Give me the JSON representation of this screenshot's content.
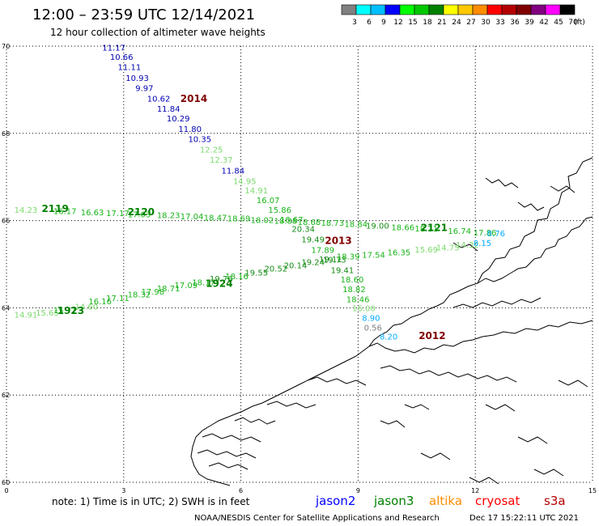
{
  "header": {
    "title": "12:00  –  23:59 UTC  12/14/2021",
    "subtitle": "12 hour collection of altimeter wave heights"
  },
  "legend": {
    "colors": [
      "#808080",
      "#00ffff",
      "#00bfff",
      "#0000ff",
      "#00ff00",
      "#00c800",
      "#008000",
      "#ffff00",
      "#ffc800",
      "#ff8c00",
      "#ff0000",
      "#b40000",
      "#800000",
      "#800080",
      "#ff00ff",
      "#000000"
    ],
    "labels": [
      "3",
      "6",
      "9",
      "12",
      "15",
      "18",
      "21",
      "24",
      "27",
      "30",
      "33",
      "36",
      "39",
      "42",
      "45",
      "70",
      "(ft)"
    ]
  },
  "axes": {
    "lon_ticks": [
      "0",
      "3",
      "6",
      "9",
      "12",
      "15"
    ],
    "lat_ticks": [
      "70",
      "68",
      "66",
      "64",
      "62",
      "60"
    ]
  },
  "chart_data": {
    "type": "scatter",
    "x_range": [
      0,
      15
    ],
    "y_range": [
      60,
      70
    ],
    "units": "ft",
    "tracks": [
      {
        "satellite": "jason2",
        "pass": "2014",
        "points": [
          {
            "lon": 2.45,
            "lat": 69.9,
            "v": "11.17",
            "c": "#0000b4"
          },
          {
            "lon": 2.65,
            "lat": 69.68,
            "v": "10.66",
            "c": "#0000b4"
          },
          {
            "lon": 2.85,
            "lat": 69.45,
            "v": "11.11",
            "c": "#0000b4"
          },
          {
            "lon": 3.05,
            "lat": 69.2,
            "v": "10.93",
            "c": "#0000b4"
          },
          {
            "lon": 3.3,
            "lat": 68.97,
            "v": "9.97",
            "c": "#0000b4"
          },
          {
            "lon": 3.6,
            "lat": 68.73,
            "v": "10.62",
            "c": "#0000b4"
          },
          {
            "lon": 3.85,
            "lat": 68.5,
            "v": "11.84",
            "c": "#0000b4"
          },
          {
            "lon": 4.1,
            "lat": 68.27,
            "v": "10.29",
            "c": "#0000b4"
          },
          {
            "lon": 4.4,
            "lat": 68.03,
            "v": "11.80",
            "c": "#0000b4"
          },
          {
            "lon": 4.65,
            "lat": 67.8,
            "v": "10.35",
            "c": "#0000b4"
          },
          {
            "lon": 4.95,
            "lat": 67.56,
            "v": "12.25",
            "c": "#7cd96e"
          },
          {
            "lon": 5.2,
            "lat": 67.33,
            "v": "12.37",
            "c": "#7cd96e"
          },
          {
            "lon": 5.5,
            "lat": 67.08,
            "v": "11.84",
            "c": "#0000b4"
          },
          {
            "lon": 5.8,
            "lat": 66.84,
            "v": "14.95",
            "c": "#7cd96e"
          },
          {
            "lon": 6.1,
            "lat": 66.62,
            "v": "14.91",
            "c": "#7cd96e"
          },
          {
            "lon": 6.4,
            "lat": 66.4,
            "v": "16.07",
            "c": "#18b418"
          },
          {
            "lon": 6.7,
            "lat": 66.18,
            "v": "15.86",
            "c": "#18b418"
          },
          {
            "lon": 7.0,
            "lat": 65.96,
            "v": "16.67",
            "c": "#18b418"
          },
          {
            "lon": 7.3,
            "lat": 65.74,
            "v": "20.34",
            "c": "#148c14"
          },
          {
            "lon": 7.55,
            "lat": 65.5,
            "v": "19.49",
            "c": "#148c14"
          },
          {
            "lon": 7.8,
            "lat": 65.26,
            "v": "17.89",
            "c": "#18b418"
          },
          {
            "lon": 8.1,
            "lat": 65.04,
            "v": "19.73",
            "c": "#148c14"
          },
          {
            "lon": 8.3,
            "lat": 64.8,
            "v": "19.41",
            "c": "#148c14"
          },
          {
            "lon": 8.55,
            "lat": 64.58,
            "v": "18.60",
            "c": "#18b418"
          },
          {
            "lon": 8.6,
            "lat": 64.36,
            "v": "18.82",
            "c": "#18b418"
          },
          {
            "lon": 8.7,
            "lat": 64.13,
            "v": "18.46",
            "c": "#18b418"
          },
          {
            "lon": 8.85,
            "lat": 63.92,
            "v": "16.00",
            "c": "#7cd96e"
          },
          {
            "lon": 9.1,
            "lat": 63.7,
            "v": "8.90",
            "c": "#00aaff"
          },
          {
            "lon": 9.15,
            "lat": 63.48,
            "v": "0.56",
            "c": "#808080"
          },
          {
            "lon": 9.55,
            "lat": 63.27,
            "v": "8.20",
            "c": "#00aaff"
          }
        ]
      },
      {
        "satellite": "jason3",
        "pass": "2120",
        "points": [
          {
            "lon": 0.2,
            "lat": 66.18,
            "v": "14.23",
            "c": "#7cd96e"
          },
          {
            "lon": 1.2,
            "lat": 66.15,
            "v": "16.17",
            "c": "#18b418"
          },
          {
            "lon": 1.9,
            "lat": 66.12,
            "v": "16.63",
            "c": "#18b418"
          },
          {
            "lon": 2.55,
            "lat": 66.1,
            "v": "17.17",
            "c": "#18b418"
          },
          {
            "lon": 3.1,
            "lat": 66.08,
            "v": "17.03",
            "c": "#18b418"
          },
          {
            "lon": 3.85,
            "lat": 66.06,
            "v": "18.23",
            "c": "#18b418"
          },
          {
            "lon": 4.45,
            "lat": 66.03,
            "v": "17.04",
            "c": "#18b418"
          },
          {
            "lon": 5.05,
            "lat": 66.0,
            "v": "18.47",
            "c": "#18b418"
          },
          {
            "lon": 5.65,
            "lat": 65.98,
            "v": "18.69",
            "c": "#18b418"
          },
          {
            "lon": 6.25,
            "lat": 65.95,
            "v": "18.02",
            "c": "#18b418"
          },
          {
            "lon": 6.85,
            "lat": 65.93,
            "v": "18.38",
            "c": "#18b418"
          },
          {
            "lon": 7.45,
            "lat": 65.9,
            "v": "18.68",
            "c": "#18b418"
          },
          {
            "lon": 8.05,
            "lat": 65.88,
            "v": "18.73",
            "c": "#18b418"
          },
          {
            "lon": 8.65,
            "lat": 65.85,
            "v": "18.84",
            "c": "#18b418"
          },
          {
            "lon": 9.2,
            "lat": 65.82,
            "v": "19.00",
            "c": "#148c14"
          },
          {
            "lon": 9.85,
            "lat": 65.78,
            "v": "18.66",
            "c": "#18b418"
          },
          {
            "lon": 10.45,
            "lat": 65.75,
            "v": "18.21",
            "c": "#18b418"
          },
          {
            "lon": 11.3,
            "lat": 65.7,
            "v": "16.74",
            "c": "#18b418"
          },
          {
            "lon": 11.95,
            "lat": 65.66,
            "v": "17.86",
            "c": "#18b418"
          },
          {
            "lon": 12.3,
            "lat": 65.64,
            "v": "8.76",
            "c": "#00aaff"
          }
        ]
      },
      {
        "satellite": "jason3",
        "pass": "1924",
        "points": [
          {
            "lon": 0.2,
            "lat": 63.78,
            "v": "14.91",
            "c": "#7cd96e"
          },
          {
            "lon": 0.75,
            "lat": 63.82,
            "v": "15.65",
            "c": "#7cd96e"
          },
          {
            "lon": 1.2,
            "lat": 63.88,
            "v": "15.71",
            "c": "#18b418"
          },
          {
            "lon": 1.75,
            "lat": 63.96,
            "v": "14.60",
            "c": "#7cd96e"
          },
          {
            "lon": 2.1,
            "lat": 64.08,
            "v": "16.16",
            "c": "#18b418"
          },
          {
            "lon": 2.55,
            "lat": 64.16,
            "v": "17.11",
            "c": "#18b418"
          },
          {
            "lon": 3.1,
            "lat": 64.24,
            "v": "18.32",
            "c": "#18b418"
          },
          {
            "lon": 3.45,
            "lat": 64.3,
            "v": "17.98",
            "c": "#18b418"
          },
          {
            "lon": 3.85,
            "lat": 64.38,
            "v": "18.71",
            "c": "#18b418"
          },
          {
            "lon": 4.3,
            "lat": 64.45,
            "v": "17.09",
            "c": "#18b418"
          },
          {
            "lon": 4.75,
            "lat": 64.52,
            "v": "18.17",
            "c": "#18b418"
          },
          {
            "lon": 5.2,
            "lat": 64.6,
            "v": "19.76",
            "c": "#148c14"
          },
          {
            "lon": 5.6,
            "lat": 64.66,
            "v": "18.16",
            "c": "#18b418"
          },
          {
            "lon": 6.1,
            "lat": 64.74,
            "v": "19.55",
            "c": "#148c14"
          },
          {
            "lon": 6.6,
            "lat": 64.83,
            "v": "20.52",
            "c": "#148c14"
          },
          {
            "lon": 7.1,
            "lat": 64.91,
            "v": "20.14",
            "c": "#148c14"
          },
          {
            "lon": 7.55,
            "lat": 64.98,
            "v": "19.24",
            "c": "#148c14"
          },
          {
            "lon": 8.0,
            "lat": 65.05,
            "v": "19.11",
            "c": "#148c14"
          },
          {
            "lon": 8.45,
            "lat": 65.11,
            "v": "18.39",
            "c": "#18b418"
          },
          {
            "lon": 9.1,
            "lat": 65.15,
            "v": "17.54",
            "c": "#18b418"
          },
          {
            "lon": 9.75,
            "lat": 65.2,
            "v": "16.35",
            "c": "#18b418"
          },
          {
            "lon": 10.45,
            "lat": 65.27,
            "v": "15.69",
            "c": "#7cd96e"
          },
          {
            "lon": 11.0,
            "lat": 65.32,
            "v": "14.75",
            "c": "#7cd96e"
          },
          {
            "lon": 11.5,
            "lat": 65.38,
            "v": "14.32",
            "c": "#7cd96e"
          },
          {
            "lon": 11.95,
            "lat": 65.42,
            "v": "8.15",
            "c": "#00aaff"
          }
        ]
      }
    ],
    "pass_labels": [
      {
        "text": "2014",
        "lon": 4.45,
        "lat": 68.72,
        "c": "#800000"
      },
      {
        "text": "2119",
        "lon": 0.9,
        "lat": 66.2,
        "c": "#008000"
      },
      {
        "text": "2120",
        "lon": 3.1,
        "lat": 66.12,
        "c": "#008000"
      },
      {
        "text": "2013",
        "lon": 8.15,
        "lat": 65.46,
        "c": "#800000"
      },
      {
        "text": "2121",
        "lon": 10.6,
        "lat": 65.76,
        "c": "#008000"
      },
      {
        "text": "1924",
        "lon": 5.1,
        "lat": 64.48,
        "c": "#008000"
      },
      {
        "text": "1923",
        "lon": 1.3,
        "lat": 63.86,
        "c": "#008000"
      },
      {
        "text": "2012",
        "lon": 10.55,
        "lat": 63.28,
        "c": "#800000"
      }
    ]
  },
  "footer": {
    "note": "note:  1) Time is in UTC;  2) SWH is in feet",
    "satellites": [
      {
        "name": "jason2",
        "color": "#0000ff"
      },
      {
        "name": "jason3",
        "color": "#008000"
      },
      {
        "name": "altika",
        "color": "#ff8c00"
      },
      {
        "name": "cryosat",
        "color": "#ff0000"
      },
      {
        "name": "s3a",
        "color": "#b40000"
      }
    ],
    "credit": "NOAA/NESDIS Center for Satellite Applications and Research",
    "timestamp": "Dec 17 15:22:11 UTC 2021"
  }
}
